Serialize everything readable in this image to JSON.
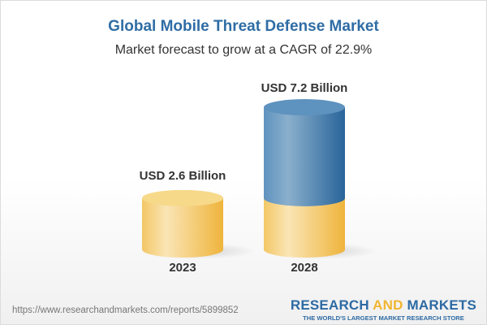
{
  "title": "Global Mobile Threat Defense Market",
  "subtitle": "Market forecast to grow at a CAGR of 22.9%",
  "chart_data": {
    "type": "bar",
    "style": "3d-cylinder",
    "categories": [
      "2023",
      "2028"
    ],
    "values": [
      2.6,
      7.2
    ],
    "data_labels": [
      "USD 2.6 Billion",
      "USD 7.2 Billion"
    ],
    "unit": "USD Billion",
    "colors": {
      "base": "#f2c458",
      "growth": "#3a76aa"
    }
  },
  "footer": {
    "url": "https://www.researchandmarkets.com/reports/5899852",
    "logo_part1": "RESEARCH ",
    "logo_part2": "AND",
    "logo_part3": " MARKETS",
    "tagline": "THE WORLD'S LARGEST MARKET RESEARCH STORE"
  }
}
